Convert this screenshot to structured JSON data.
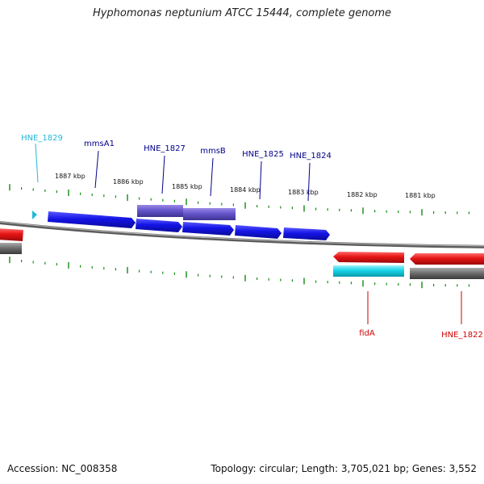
{
  "title": "Hyphomonas neptunium ATCC 15444, complete genome",
  "footer": {
    "accession": "Accession: NC_008358",
    "stats": "Topology: circular; Length: 3,705,021 bp; Genes: 3,552"
  },
  "scale_labels": [
    "1887 kbp",
    "1886 kbp",
    "1885 kbp",
    "1884 kbp",
    "1883 kbp",
    "1882 kbp",
    "1881 kbp"
  ],
  "gene_labels": {
    "hne1829": "HNE_1829",
    "mmsA1": "mmsA1",
    "hne1827": "HNE_1827",
    "mmsB": "mmsB",
    "hne1825": "HNE_1825",
    "hne1824": "HNE_1824",
    "fidA": "fidA",
    "hne1822": "HNE_1822"
  },
  "colors": {
    "forward_cds": "#1414e6",
    "forward_cds_highlight": "#6655cc",
    "reverse_cds": "#e61414",
    "cyan_cds": "#16d4e8",
    "gene_grey": "#777777",
    "tick_green": "#138a13",
    "label_blue": "#00008b",
    "label_cyan": "#22b8d8",
    "label_red": "#d00000"
  }
}
